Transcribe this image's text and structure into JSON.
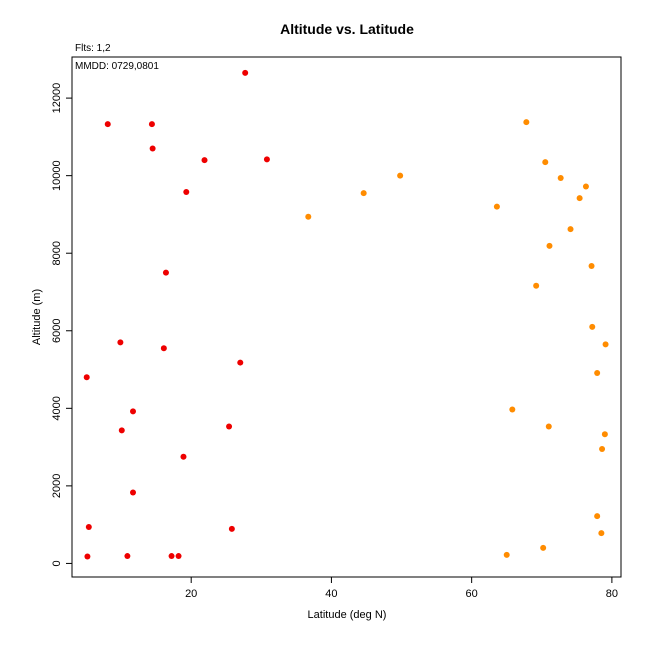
{
  "header": {
    "flts_label": "Flts: 1,2",
    "mmdd_label": "MMDD: 0729,0801"
  },
  "chart_data": {
    "type": "scatter",
    "title": "Altitude vs. Latitude",
    "xlabel": "Latitude (deg N)",
    "ylabel": "Altitude (m)",
    "xlim": [
      3,
      81.3
    ],
    "ylim": [
      -350,
      13060
    ],
    "xticks": [
      20,
      40,
      60,
      80
    ],
    "yticks": [
      0,
      2000,
      4000,
      6000,
      8000,
      10000,
      12000
    ],
    "legend": "none",
    "grid": false,
    "series": [
      {
        "color": "#ee0000",
        "points": [
          [
            27.7,
            12650
          ],
          [
            8.1,
            11330
          ],
          [
            14.4,
            11330
          ],
          [
            14.5,
            10700
          ],
          [
            21.9,
            10400
          ],
          [
            30.8,
            10420
          ],
          [
            19.3,
            9580
          ],
          [
            16.4,
            7500
          ],
          [
            9.9,
            5700
          ],
          [
            16.1,
            5550
          ],
          [
            27.0,
            5180
          ],
          [
            5.1,
            4800
          ],
          [
            11.7,
            3920
          ],
          [
            10.1,
            3430
          ],
          [
            25.4,
            3530
          ],
          [
            18.9,
            2750
          ],
          [
            11.7,
            1830
          ],
          [
            5.4,
            940
          ],
          [
            25.8,
            890
          ],
          [
            5.2,
            180
          ],
          [
            10.9,
            190
          ],
          [
            17.2,
            190
          ],
          [
            18.2,
            190
          ]
        ]
      },
      {
        "color": "#ff8c00",
        "points": [
          [
            67.8,
            11380
          ],
          [
            70.5,
            10350
          ],
          [
            72.7,
            9940
          ],
          [
            76.3,
            9720
          ],
          [
            49.8,
            10000
          ],
          [
            44.6,
            9550
          ],
          [
            75.4,
            9420
          ],
          [
            63.6,
            9200
          ],
          [
            36.7,
            8940
          ],
          [
            74.1,
            8620
          ],
          [
            71.1,
            8190
          ],
          [
            77.1,
            7670
          ],
          [
            69.2,
            7160
          ],
          [
            77.2,
            6100
          ],
          [
            79.1,
            5650
          ],
          [
            77.9,
            4910
          ],
          [
            65.8,
            3970
          ],
          [
            71.0,
            3530
          ],
          [
            79.0,
            3330
          ],
          [
            78.6,
            2950
          ],
          [
            77.9,
            1220
          ],
          [
            78.5,
            780
          ],
          [
            70.2,
            400
          ],
          [
            65.0,
            220
          ]
        ]
      }
    ]
  }
}
